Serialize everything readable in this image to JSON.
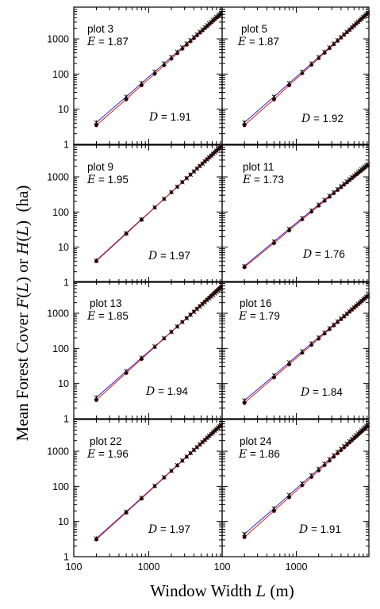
{
  "figure": {
    "ylabel": "Mean Forest Cover F(L) or H(L) (ha)",
    "ylabel_parts": [
      "Mean Forest Cover ",
      "F",
      "(",
      "L",
      ") or ",
      "H",
      "(",
      "L",
      ")",
      "  (ha)"
    ],
    "xlabel": "Window Width L (m)",
    "xlabel_parts": [
      "Window Width ",
      "L",
      " (m)"
    ],
    "x_tick_labels": [
      "100",
      "1000",
      "100",
      "1000"
    ],
    "y_tick_labels": [
      "1",
      "10",
      "100",
      "1000"
    ],
    "colors": {
      "F_line": "#d42020",
      "H_line": "#2828c8",
      "marker": "#000000",
      "frame": "#000000"
    }
  },
  "chart_data": [
    {
      "type": "scatter",
      "title": "plot 3",
      "E_label": "E",
      "E": "1.87",
      "D_label": "D",
      "D": "1.91",
      "x_scale": "log",
      "y_scale": "log",
      "xlim": [
        100,
        9500
      ],
      "ylim": [
        1,
        8000
      ],
      "series": [
        {
          "name": "F(L)",
          "x": [
            200,
            500,
            800,
            1200,
            1600,
            2000,
            2400,
            2800,
            3200,
            3600,
            4000,
            4400,
            4800,
            5200,
            5600,
            6000,
            6400,
            6800,
            7200,
            7600,
            8000,
            8400,
            8800,
            9200
          ],
          "y": [
            3.5,
            19,
            48,
            100,
            176,
            270,
            385,
            519,
            672,
            845,
            1036,
            1245,
            1474,
            1722,
            1987,
            2271,
            2574,
            2894,
            3233,
            3590,
            3965,
            4359,
            4771,
            5201
          ]
        },
        {
          "name": "H(L)",
          "x": [
            200,
            500,
            800,
            1200,
            1600,
            2000,
            2400,
            2800,
            3200,
            3600,
            4000,
            4400,
            4800,
            5200,
            5600,
            6000,
            6400,
            6800,
            7200,
            7600,
            8000,
            8400,
            8800,
            9200
          ],
          "y": [
            4.2,
            22.5,
            55,
            116,
            199,
            303,
            427,
            571,
            735,
            917,
            1120,
            1340,
            1580,
            1840,
            2117,
            2413,
            2729,
            3062,
            3414,
            3784,
            4173,
            4580,
            5005,
            5448
          ]
        }
      ]
    },
    {
      "type": "scatter",
      "title": "plot 5",
      "E_label": "E",
      "E": "1.87",
      "D_label": "D",
      "D": "1.92",
      "x_scale": "log",
      "y_scale": "log",
      "xlim": [
        100,
        9500
      ],
      "ylim": [
        1,
        8000
      ],
      "series": [
        {
          "name": "F(L)",
          "x": [
            200,
            500,
            800,
            1200,
            1600,
            2000,
            2400,
            2800,
            3200,
            3600,
            4000,
            4400,
            4800,
            5200,
            5600,
            6000,
            6400,
            6800,
            7200,
            7600,
            8000,
            8400,
            8800,
            9200
          ],
          "y": [
            3.5,
            19,
            48,
            104,
            181,
            279,
            397,
            536,
            695,
            874,
            1073,
            1292,
            1531,
            1789,
            2067,
            2365,
            2682,
            3018,
            3374,
            3750,
            4145,
            4558,
            4992,
            5444
          ]
        },
        {
          "name": "H(L)",
          "x": [
            200,
            500,
            800,
            1200,
            1600,
            2000,
            2400,
            2800,
            3200,
            3600,
            4000,
            4400,
            4800,
            5200,
            5600,
            6000,
            6400,
            6800,
            7200,
            7600,
            8000,
            8400,
            8800,
            9200
          ],
          "y": [
            4.2,
            22.6,
            55,
            116,
            199,
            303,
            427,
            571,
            735,
            917,
            1120,
            1340,
            1580,
            1840,
            2117,
            2413,
            2729,
            3062,
            3414,
            3784,
            4173,
            4580,
            5005,
            5448
          ]
        }
      ]
    },
    {
      "type": "scatter",
      "title": "plot 9",
      "E_label": "E",
      "E": "1.95",
      "D_label": "D",
      "D": "1.97",
      "x_scale": "log",
      "y_scale": "log",
      "xlim": [
        100,
        9500
      ],
      "ylim": [
        1,
        8000
      ],
      "series": [
        {
          "name": "F(L)",
          "x": [
            200,
            500,
            800,
            1200,
            1600,
            2000,
            2400,
            2800,
            3200,
            3600,
            4000,
            4400,
            4800,
            5200,
            5600,
            6000,
            6400,
            6800,
            7200,
            7600,
            8000,
            8400,
            8800,
            9200
          ],
          "y": [
            4.0,
            24,
            60,
            133,
            234,
            364,
            522,
            708,
            921,
            1163,
            1432,
            1729,
            2053,
            2405,
            2784,
            3190,
            3624,
            4084,
            4572,
            5087,
            5629,
            6198,
            6794,
            7417
          ]
        },
        {
          "name": "H(L)",
          "x": [
            200,
            500,
            800,
            1200,
            1600,
            2000,
            2400,
            2800,
            3200,
            3600,
            4000,
            4400,
            4800,
            5200,
            5600,
            6000,
            6400,
            6800,
            7200,
            7600,
            8000,
            8400,
            8800,
            9200
          ],
          "y": [
            4.2,
            25,
            62,
            135,
            237,
            366,
            523,
            707,
            918,
            1156,
            1420,
            1711,
            2028,
            2372,
            2741,
            3137,
            3558,
            4005,
            4477,
            4975,
            5498,
            6046,
            6619,
            7218
          ]
        }
      ]
    },
    {
      "type": "scatter",
      "title": "plot 11",
      "E_label": "E",
      "E": "1.73",
      "D_label": "D",
      "D": "1.76",
      "x_scale": "log",
      "y_scale": "log",
      "xlim": [
        100,
        9500
      ],
      "ylim": [
        1,
        8000
      ],
      "series": [
        {
          "name": "F(L)",
          "x": [
            200,
            500,
            800,
            1200,
            1600,
            2000,
            2400,
            2800,
            3200,
            3600,
            4000,
            4400,
            4800,
            5200,
            5600,
            6000,
            6400,
            6800,
            7200,
            7600,
            8000,
            8400,
            8800,
            9200
          ],
          "y": [
            2.7,
            13,
            30,
            61,
            101,
            149,
            205,
            268,
            339,
            416,
            501,
            592,
            689,
            793,
            903,
            1019,
            1141,
            1269,
            1403,
            1543,
            1689,
            1840,
            1996,
            2158
          ]
        },
        {
          "name": "H(L)",
          "x": [
            200,
            500,
            800,
            1200,
            1600,
            2000,
            2400,
            2800,
            3200,
            3600,
            4000,
            4400,
            4800,
            5200,
            5600,
            6000,
            6400,
            6800,
            7200,
            7600,
            8000,
            8400,
            8800,
            9200
          ],
          "y": [
            2.9,
            14.5,
            33,
            67,
            110,
            162,
            222,
            290,
            365,
            448,
            538,
            634,
            737,
            847,
            963,
            1085,
            1213,
            1347,
            1487,
            1633,
            1784,
            1941,
            2104,
            2272
          ]
        }
      ]
    },
    {
      "type": "scatter",
      "title": "plot 13",
      "E_label": "E",
      "E": "1.85",
      "D_label": "D",
      "D": "1.94",
      "x_scale": "log",
      "y_scale": "log",
      "xlim": [
        100,
        9500
      ],
      "ylim": [
        1,
        8000
      ],
      "series": [
        {
          "name": "F(L)",
          "x": [
            200,
            500,
            800,
            1200,
            1600,
            2000,
            2400,
            2800,
            3200,
            3600,
            4000,
            4400,
            4800,
            5200,
            5600,
            6000,
            6400,
            6800,
            7200,
            7600,
            8000,
            8400,
            8800,
            9200
          ],
          "y": [
            3.4,
            20,
            50,
            109,
            190,
            293,
            418,
            565,
            733,
            922,
            1133,
            1365,
            1617,
            1891,
            2186,
            2501,
            2838,
            3195,
            3573,
            3972,
            4391,
            4831,
            5292,
            5774
          ]
        },
        {
          "name": "H(L)",
          "x": [
            200,
            500,
            800,
            1200,
            1600,
            2000,
            2400,
            2800,
            3200,
            3600,
            4000,
            4400,
            4800,
            5200,
            5600,
            6000,
            6400,
            6800,
            7200,
            7600,
            8000,
            8400,
            8800,
            9200
          ],
          "y": [
            4.0,
            22.5,
            54,
            114,
            195,
            297,
            419,
            560,
            720,
            898,
            1095,
            1311,
            1544,
            1796,
            2066,
            2353,
            2658,
            2982,
            3322,
            3681,
            4057,
            4450,
            4861,
            5290
          ]
        }
      ]
    },
    {
      "type": "scatter",
      "title": "plot 16",
      "E_label": "E",
      "E": "1.79",
      "D_label": "D",
      "D": "1.84",
      "x_scale": "log",
      "y_scale": "log",
      "xlim": [
        100,
        9500
      ],
      "ylim": [
        1,
        8000
      ],
      "series": [
        {
          "name": "F(L)",
          "x": [
            200,
            500,
            800,
            1200,
            1600,
            2000,
            2400,
            2800,
            3200,
            3600,
            4000,
            4400,
            4800,
            5200,
            5600,
            6000,
            6400,
            6800,
            7200,
            7600,
            8000,
            8400,
            8800,
            9200
          ],
          "y": [
            2.8,
            15,
            35,
            74,
            124,
            187,
            261,
            347,
            444,
            552,
            671,
            800,
            941,
            1091,
            1252,
            1424,
            1605,
            1797,
            1999,
            2210,
            2432,
            2663,
            2904,
            3155
          ]
        },
        {
          "name": "H(L)",
          "x": [
            200,
            500,
            800,
            1200,
            1600,
            2000,
            2400,
            2800,
            3200,
            3600,
            4000,
            4400,
            4800,
            5200,
            5600,
            6000,
            6400,
            6800,
            7200,
            7600,
            8000,
            8400,
            8800,
            9200
          ],
          "y": [
            3.3,
            17,
            40,
            83,
            138,
            205,
            284,
            374,
            474,
            585,
            707,
            838,
            980,
            1132,
            1293,
            1465,
            1646,
            1836,
            2036,
            2245,
            2464,
            2692,
            2930,
            3177
          ]
        }
      ]
    },
    {
      "type": "scatter",
      "title": "plot 22",
      "E_label": "E",
      "E": "1.96",
      "D_label": "D",
      "D": "1.97",
      "x_scale": "log",
      "y_scale": "log",
      "xlim": [
        100,
        9500
      ],
      "ylim": [
        1,
        8000
      ],
      "series": [
        {
          "name": "F(L)",
          "x": [
            200,
            500,
            800,
            1200,
            1600,
            2000,
            2400,
            2800,
            3200,
            3600,
            4000,
            4400,
            4800,
            5200,
            5600,
            6000,
            6400,
            6800,
            7200,
            7600,
            8000,
            8400,
            8800,
            9200
          ],
          "y": [
            3.1,
            18,
            45,
            100,
            176,
            273,
            391,
            531,
            691,
            872,
            1074,
            1297,
            1540,
            1804,
            2088,
            2393,
            2718,
            3064,
            3429,
            3815,
            4222,
            4649,
            5096,
            5563
          ]
        },
        {
          "name": "H(L)",
          "x": [
            200,
            500,
            800,
            1200,
            1600,
            2000,
            2400,
            2800,
            3200,
            3600,
            4000,
            4400,
            4800,
            5200,
            5600,
            6000,
            6400,
            6800,
            7200,
            7600,
            8000,
            8400,
            8800,
            9200
          ],
          "y": [
            3.3,
            19,
            47,
            104,
            182,
            281,
            401,
            543,
            705,
            887,
            1091,
            1315,
            1560,
            1825,
            2111,
            2417,
            2744,
            3091,
            3458,
            3846,
            4253,
            4681,
            5129,
            5597
          ]
        }
      ]
    },
    {
      "type": "scatter",
      "title": "plot 24",
      "E_label": "E",
      "E": "1.86",
      "D_label": "D",
      "D": "1.91",
      "x_scale": "log",
      "y_scale": "log",
      "xlim": [
        100,
        9500
      ],
      "ylim": [
        1,
        8000
      ],
      "series": [
        {
          "name": "F(L)",
          "x": [
            200,
            500,
            800,
            1200,
            1600,
            2000,
            2400,
            2800,
            3200,
            3600,
            4000,
            4400,
            4800,
            5200,
            5600,
            6000,
            6400,
            6800,
            7200,
            7600,
            8000,
            8400,
            8800,
            9200
          ],
          "y": [
            3.6,
            20,
            49,
            106,
            183,
            280,
            396,
            532,
            687,
            860,
            1053,
            1264,
            1493,
            1741,
            2008,
            2292,
            2595,
            2916,
            3255,
            3612,
            3987,
            4380,
            4790,
            5218
          ]
        },
        {
          "name": "H(L)",
          "x": [
            200,
            500,
            800,
            1200,
            1600,
            2000,
            2400,
            2800,
            3200,
            3600,
            4000,
            4400,
            4800,
            5200,
            5600,
            6000,
            6400,
            6800,
            7200,
            7600,
            8000,
            8400,
            8800,
            9200
          ],
          "y": [
            4.4,
            23.5,
            57,
            121,
            207,
            315,
            444,
            594,
            764,
            954,
            1164,
            1394,
            1643,
            1912,
            2201,
            2508,
            2836,
            3182,
            3548,
            3932,
            4336,
            4759,
            5201,
            5662
          ]
        }
      ]
    }
  ]
}
